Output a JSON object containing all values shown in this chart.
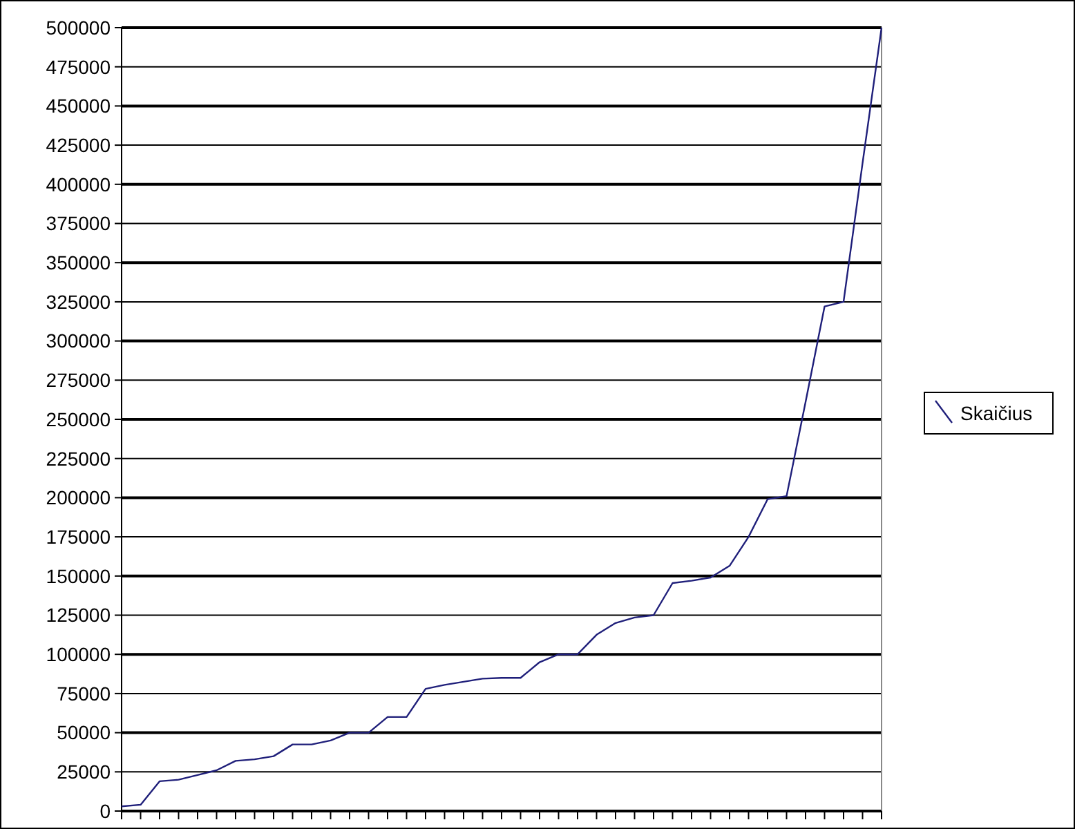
{
  "chart_data": {
    "type": "line",
    "categories": [
      null,
      null,
      null,
      null,
      null,
      null,
      null,
      null,
      null,
      null,
      null,
      null,
      null,
      null,
      null,
      null,
      null,
      null,
      null,
      null,
      null,
      null,
      null,
      null,
      null,
      null,
      null,
      null,
      null,
      null,
      null,
      null,
      null,
      null,
      null,
      null,
      null,
      null,
      null,
      null,
      null
    ],
    "series": [
      {
        "name": "Skaičius",
        "color": "#1f1f7a",
        "values": [
          3000,
          4000,
          19000,
          20000,
          23000,
          26000,
          32000,
          33000,
          35000,
          42500,
          42500,
          45000,
          50000,
          50000,
          60000,
          60000,
          78000,
          80500,
          82500,
          84500,
          85000,
          85000,
          95000,
          100000,
          100000,
          112500,
          120000,
          123500,
          125000,
          145500,
          147000,
          149000,
          156500,
          175000,
          199000,
          201000,
          261000,
          322000,
          325000,
          413500,
          500000
        ]
      }
    ],
    "ylim": [
      0,
      500000
    ],
    "yticks": [
      0,
      25000,
      50000,
      75000,
      100000,
      125000,
      150000,
      175000,
      200000,
      225000,
      250000,
      275000,
      300000,
      325000,
      350000,
      375000,
      400000,
      425000,
      450000,
      475000,
      500000
    ],
    "grid": "y",
    "legend": "right",
    "marker": "none",
    "line_style": "solid"
  }
}
